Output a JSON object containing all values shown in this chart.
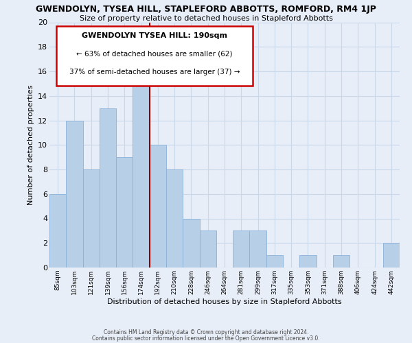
{
  "title": "GWENDOLYN, TYSEA HILL, STAPLEFORD ABBOTTS, ROMFORD, RM4 1JP",
  "subtitle": "Size of property relative to detached houses in Stapleford Abbotts",
  "xlabel": "Distribution of detached houses by size in Stapleford Abbotts",
  "ylabel": "Number of detached properties",
  "footer_line1": "Contains HM Land Registry data © Crown copyright and database right 2024.",
  "footer_line2": "Contains public sector information licensed under the Open Government Licence v3.0.",
  "bar_labels": [
    "85sqm",
    "103sqm",
    "121sqm",
    "139sqm",
    "156sqm",
    "174sqm",
    "192sqm",
    "210sqm",
    "228sqm",
    "246sqm",
    "264sqm",
    "281sqm",
    "299sqm",
    "317sqm",
    "335sqm",
    "353sqm",
    "371sqm",
    "388sqm",
    "406sqm",
    "424sqm",
    "442sqm"
  ],
  "bar_values": [
    6,
    12,
    8,
    13,
    9,
    16,
    10,
    8,
    4,
    3,
    0,
    3,
    3,
    1,
    0,
    1,
    0,
    1,
    0,
    0,
    2
  ],
  "bar_color": "#b8cfe8",
  "bar_edge_color": "#8ab0d8",
  "vline_color": "#8b0000",
  "vline_x_index": 5,
  "annotation_title": "GWENDOLYN TYSEA HILL: 190sqm",
  "annotation_line1": "← 63% of detached houses are smaller (62)",
  "annotation_line2": "37% of semi-detached houses are larger (37) →",
  "annotation_box_edge": "#cc0000",
  "ylim": [
    0,
    20
  ],
  "yticks": [
    0,
    2,
    4,
    6,
    8,
    10,
    12,
    14,
    16,
    18,
    20
  ],
  "grid_color": "#c8d8e8",
  "background_color": "#e8eef8"
}
